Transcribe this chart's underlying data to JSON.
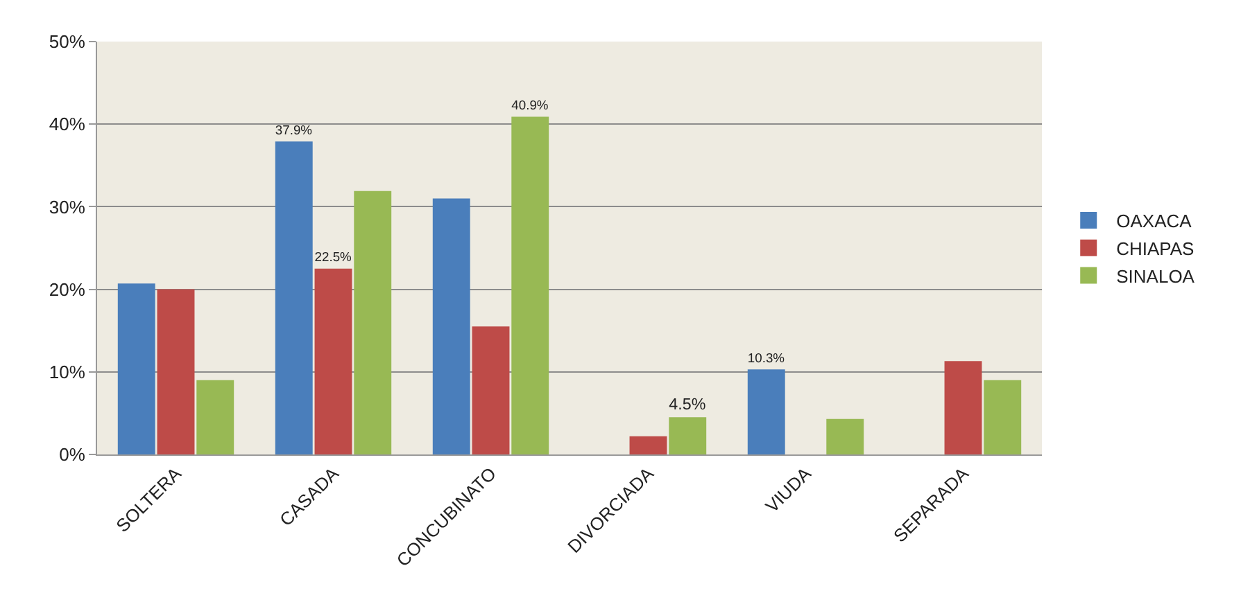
{
  "chart_data": {
    "type": "bar",
    "categories": [
      "SOLTERA",
      "CASADA",
      "CONCUBINATO",
      "DIVORCIADA",
      "VIUDA",
      "SEPARADA"
    ],
    "series": [
      {
        "name": "OAXACA",
        "color": "#4a7ebb",
        "values": [
          20.7,
          37.9,
          31.0,
          0,
          10.3,
          0
        ],
        "value_labels": [
          null,
          "37.9%",
          null,
          null,
          "10.3%",
          null
        ]
      },
      {
        "name": "CHIAPAS",
        "color": "#be4b48",
        "values": [
          20.0,
          22.5,
          15.5,
          2.2,
          0,
          11.3
        ],
        "value_labels": [
          null,
          "22.5%",
          null,
          null,
          null,
          null
        ]
      },
      {
        "name": "SINALOA",
        "color": "#98b954",
        "values": [
          9.0,
          31.9,
          40.9,
          4.5,
          4.3,
          9.0
        ],
        "value_labels": [
          null,
          null,
          "40.9%",
          "4.5%",
          null,
          null
        ]
      }
    ],
    "ylim": [
      0,
      50
    ],
    "yticks": [
      {
        "value": 0,
        "label": "0%"
      },
      {
        "value": 10,
        "label": "10%"
      },
      {
        "value": 20,
        "label": "20%"
      },
      {
        "value": 30,
        "label": "30%"
      },
      {
        "value": 40,
        "label": "40%"
      },
      {
        "value": 50,
        "label": "50%"
      }
    ],
    "grid": "y",
    "legend": "right"
  }
}
